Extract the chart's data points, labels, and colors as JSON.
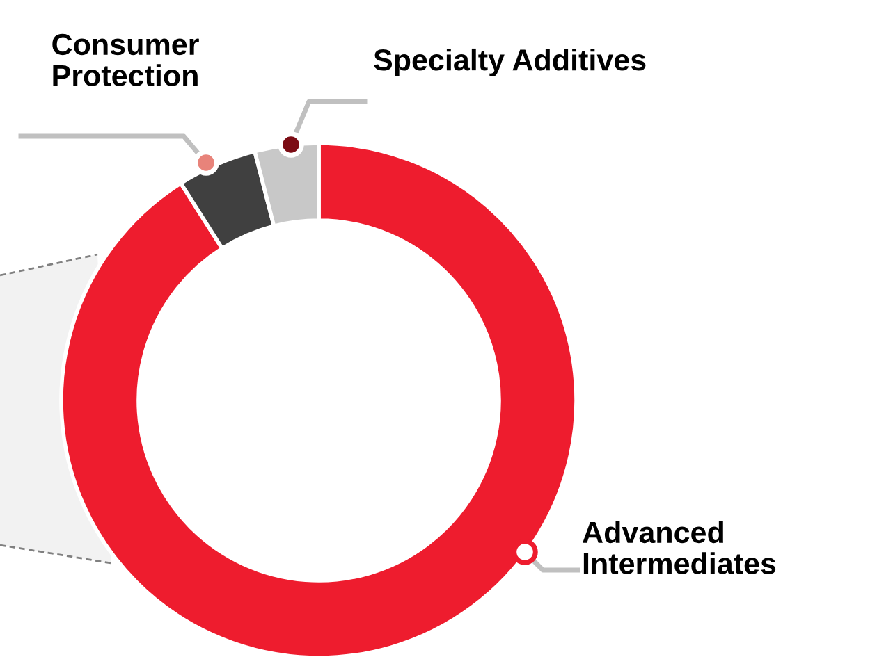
{
  "chart_data": {
    "type": "donut",
    "categories": [
      "Advanced\nIntermediates",
      "Consumer\nProtection",
      "Specialty Additives"
    ],
    "values": [
      91,
      5,
      4
    ],
    "colors": [
      "#ee1c2e",
      "#404040",
      "#c8c8c8"
    ]
  }
}
